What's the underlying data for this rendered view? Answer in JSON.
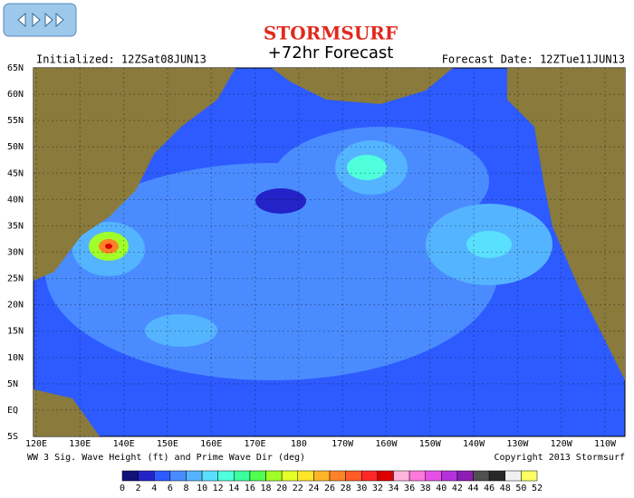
{
  "header": {
    "brand": "STORMSURF",
    "title": "+72hr Forecast",
    "initialized": "Initialized: 12ZSat08JUN13",
    "forecast_date": "Forecast Date: 12ZTue11JUN13"
  },
  "map": {
    "lat_labels": [
      "65N",
      "60N",
      "55N",
      "50N",
      "45N",
      "40N",
      "35N",
      "30N",
      "25N",
      "20N",
      "15N",
      "10N",
      "5N",
      "EQ",
      "5S"
    ],
    "lon_labels": [
      "120E",
      "130E",
      "140E",
      "150E",
      "160E",
      "170E",
      "180",
      "170W",
      "160W",
      "150W",
      "140W",
      "130W",
      "120W",
      "110W"
    ]
  },
  "footer": {
    "caption": "WW 3 Sig. Wave Height (ft) and Prime Wave Dir (deg)",
    "copyright": "Copyright 2013 Stormsurf"
  },
  "legend": {
    "labels": [
      0,
      2,
      4,
      6,
      8,
      10,
      12,
      14,
      16,
      18,
      20,
      22,
      24,
      26,
      28,
      30,
      32,
      34,
      36,
      38,
      40,
      42,
      44,
      46,
      48,
      50,
      52
    ],
    "colors": [
      "#12127a",
      "#2323c8",
      "#2e5bff",
      "#4a8cff",
      "#55b4ff",
      "#5ae0ff",
      "#50ffdc",
      "#3cffa0",
      "#50ff50",
      "#a0ff28",
      "#e6ff28",
      "#ffe628",
      "#ffb428",
      "#ff8228",
      "#ff5a28",
      "#ff2828",
      "#dc0000",
      "#ffb4dc",
      "#ff78dc",
      "#e650e6",
      "#b432dc",
      "#8c1eb4",
      "#505050",
      "#282828",
      "#f0f0f0",
      "#ffff64"
    ]
  }
}
